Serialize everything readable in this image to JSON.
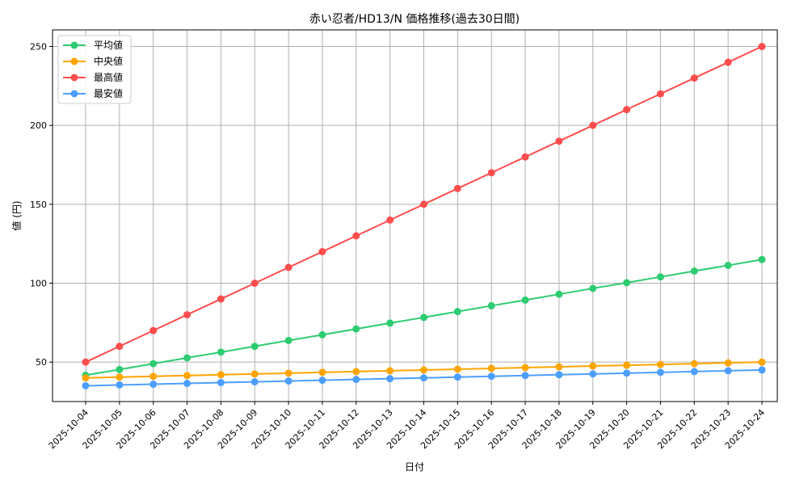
{
  "chart_data": {
    "type": "line",
    "title": "赤い忍者/HD13/N 価格推移(過去30日間)",
    "xlabel": "日付",
    "ylabel": "値 (円)",
    "ylim": [
      25,
      260.5
    ],
    "yticks": [
      50,
      100,
      150,
      200,
      250
    ],
    "grid": true,
    "legend_position": "top-left",
    "categories": [
      "2025-10-04",
      "2025-10-05",
      "2025-10-06",
      "2025-10-07",
      "2025-10-08",
      "2025-10-09",
      "2025-10-10",
      "2025-10-11",
      "2025-10-12",
      "2025-10-13",
      "2025-10-14",
      "2025-10-15",
      "2025-10-16",
      "2025-10-17",
      "2025-10-18",
      "2025-10-19",
      "2025-10-20",
      "2025-10-21",
      "2025-10-22",
      "2025-10-23",
      "2025-10-24"
    ],
    "series": [
      {
        "name": "平均値",
        "color": "#2ecc71",
        "values": [
          41.7,
          45.3,
          49.0,
          52.7,
          56.3,
          60.0,
          63.7,
          67.3,
          71.0,
          74.7,
          78.3,
          82.0,
          85.7,
          89.3,
          93.0,
          96.7,
          100.3,
          104.0,
          107.7,
          111.3,
          115.0
        ]
      },
      {
        "name": "中央値",
        "color": "#ffa500",
        "values": [
          40.0,
          40.5,
          41.0,
          41.5,
          42.0,
          42.5,
          43.0,
          43.5,
          44.0,
          44.5,
          45.0,
          45.5,
          46.0,
          46.5,
          47.0,
          47.5,
          48.0,
          48.5,
          49.0,
          49.5,
          50.0
        ]
      },
      {
        "name": "最高値",
        "color": "#ff4d4d",
        "values": [
          50,
          60,
          70,
          80,
          90,
          100,
          110,
          120,
          130,
          140,
          150,
          160,
          170,
          180,
          190,
          200,
          210,
          220,
          230,
          240,
          250
        ]
      },
      {
        "name": "最安値",
        "color": "#4d9fff",
        "values": [
          35.0,
          35.5,
          36.0,
          36.5,
          37.0,
          37.5,
          38.0,
          38.5,
          39.0,
          39.5,
          40.0,
          40.5,
          41.0,
          41.5,
          42.0,
          42.5,
          43.0,
          43.5,
          44.0,
          44.5,
          45.0
        ]
      }
    ]
  }
}
